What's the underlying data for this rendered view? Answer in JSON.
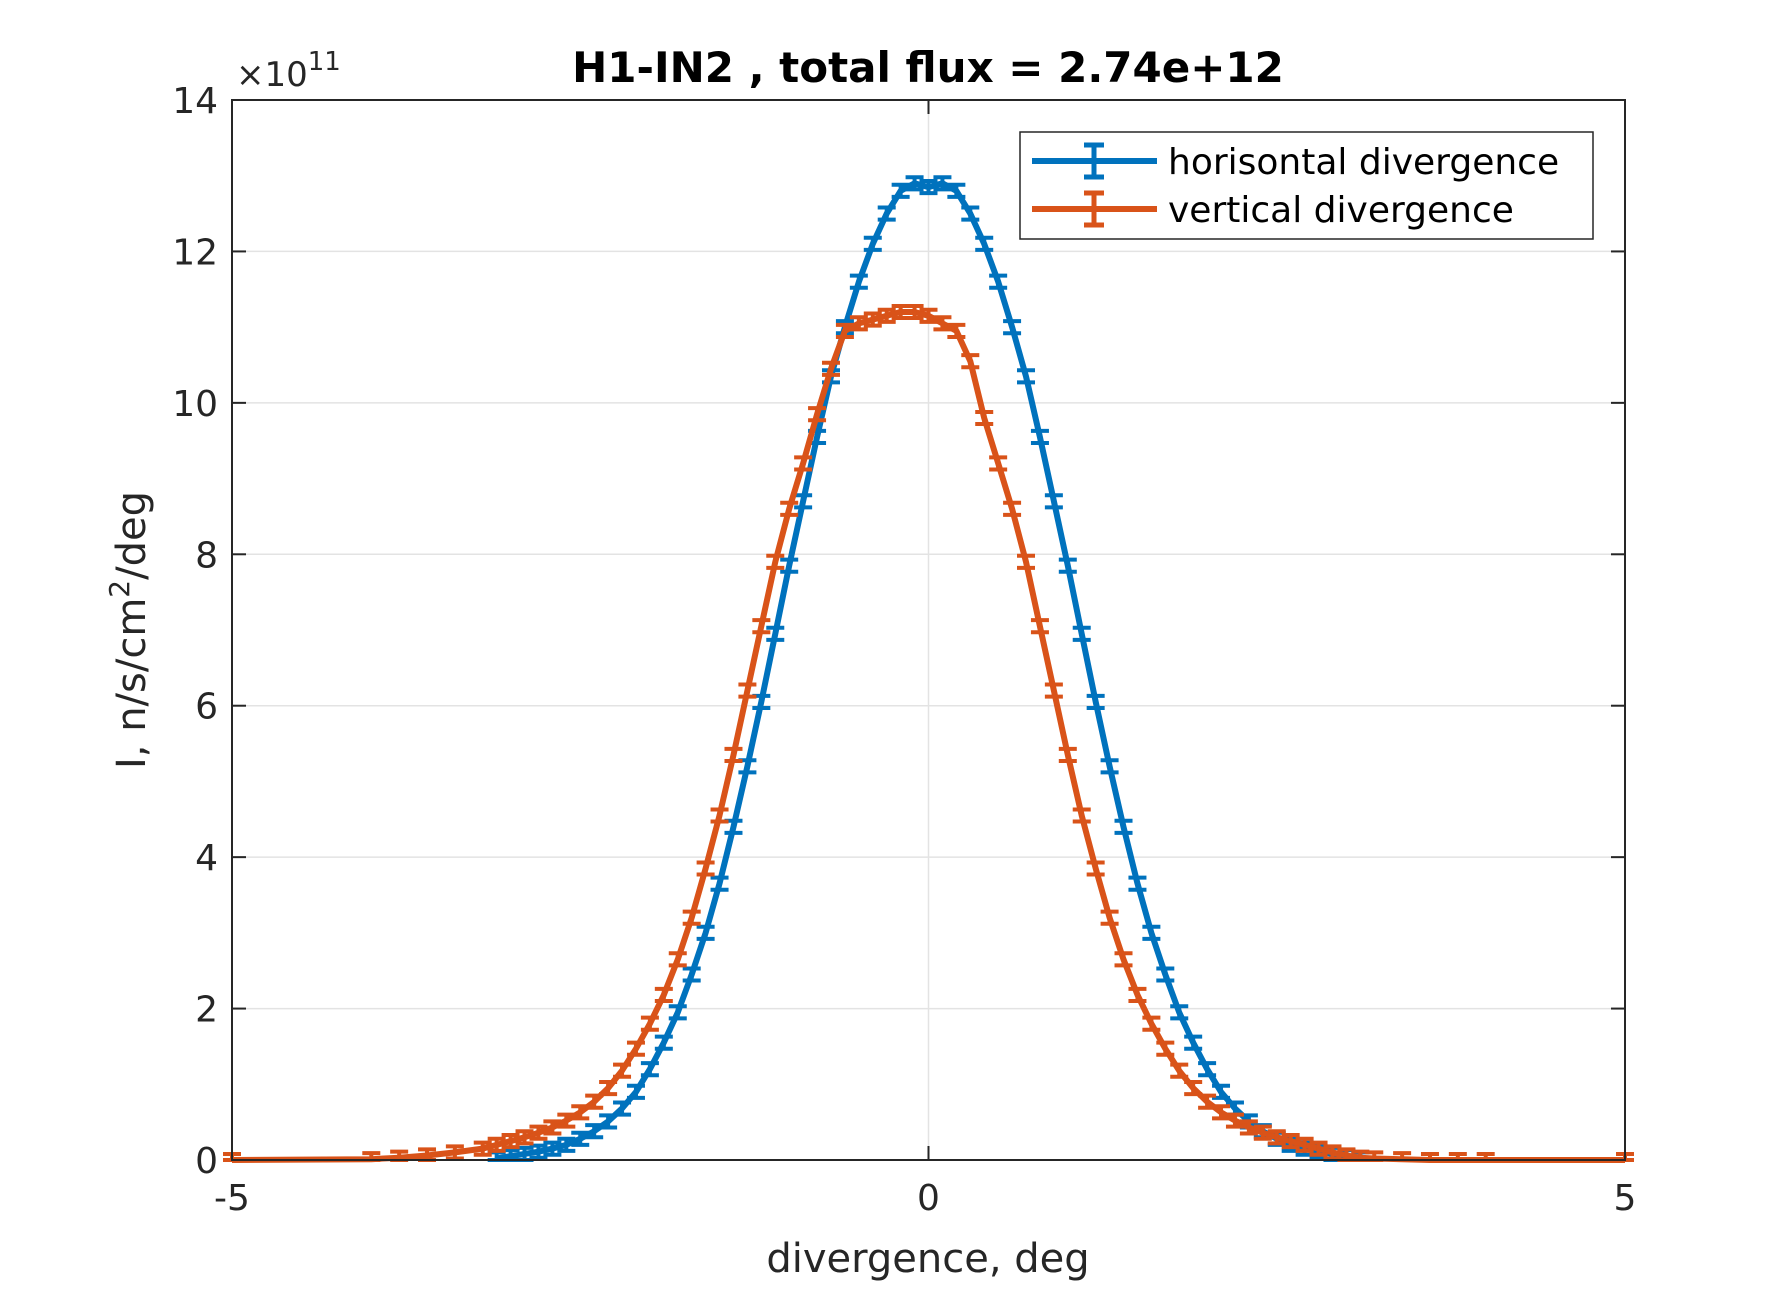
{
  "chart_data": {
    "type": "line",
    "title": "H1-IN2 , total flux =  2.74e+12",
    "xlabel": "divergence, deg",
    "ylabel_main": "I, n/s/cm",
    "ylabel_sup": "2",
    "ylabel_tail": "/deg",
    "y_exponent_prefix": "×10",
    "y_exponent_power": "11",
    "xlim": [
      -5,
      5
    ],
    "ylim": [
      0,
      14
    ],
    "x_ticks": [
      -5,
      0,
      5
    ],
    "y_ticks": [
      0,
      2,
      4,
      6,
      8,
      10,
      12,
      14
    ],
    "grid": true,
    "legend_position": "top-right",
    "series": [
      {
        "name": "horisontal divergence",
        "color": "#0072BD",
        "x": [
          -3.1,
          -3.0,
          -2.9,
          -2.8,
          -2.7,
          -2.6,
          -2.5,
          -2.4,
          -2.3,
          -2.2,
          -2.1,
          -2.0,
          -1.9,
          -1.8,
          -1.7,
          -1.6,
          -1.5,
          -1.4,
          -1.3,
          -1.2,
          -1.1,
          -1.0,
          -0.9,
          -0.8,
          -0.7,
          -0.6,
          -0.5,
          -0.4,
          -0.3,
          -0.2,
          -0.1,
          0.0,
          0.1,
          0.2,
          0.3,
          0.4,
          0.5,
          0.6,
          0.7,
          0.8,
          0.9,
          1.0,
          1.1,
          1.2,
          1.3,
          1.4,
          1.5,
          1.6,
          1.7,
          1.8,
          1.9,
          2.0,
          2.1,
          2.2,
          2.3,
          2.4,
          2.5,
          2.6,
          2.7,
          2.8,
          2.9,
          3.0,
          3.1
        ],
        "y": [
          0.02,
          0.05,
          0.08,
          0.11,
          0.15,
          0.2,
          0.28,
          0.38,
          0.51,
          0.68,
          0.9,
          1.2,
          1.55,
          1.95,
          2.45,
          3.0,
          3.65,
          4.4,
          5.2,
          6.05,
          6.95,
          7.85,
          8.7,
          9.55,
          10.35,
          11.0,
          11.6,
          12.1,
          12.5,
          12.8,
          12.9,
          12.85,
          12.9,
          12.8,
          12.5,
          12.1,
          11.6,
          11.0,
          10.35,
          9.55,
          8.7,
          7.85,
          6.95,
          6.05,
          5.2,
          4.4,
          3.65,
          3.0,
          2.45,
          1.95,
          1.55,
          1.2,
          0.9,
          0.68,
          0.51,
          0.38,
          0.28,
          0.2,
          0.15,
          0.11,
          0.08,
          0.05,
          0.02
        ]
      },
      {
        "name": "vertical divergence",
        "color": "#D95319",
        "x": [
          -5.0,
          -4.0,
          -3.8,
          -3.6,
          -3.4,
          -3.2,
          -3.1,
          -3.0,
          -2.9,
          -2.8,
          -2.7,
          -2.6,
          -2.5,
          -2.4,
          -2.3,
          -2.2,
          -2.1,
          -2.0,
          -1.9,
          -1.8,
          -1.7,
          -1.6,
          -1.5,
          -1.4,
          -1.3,
          -1.2,
          -1.1,
          -1.0,
          -0.9,
          -0.8,
          -0.7,
          -0.6,
          -0.5,
          -0.4,
          -0.3,
          -0.2,
          -0.1,
          0.0,
          0.1,
          0.2,
          0.3,
          0.4,
          0.5,
          0.6,
          0.7,
          0.8,
          0.9,
          1.0,
          1.1,
          1.2,
          1.3,
          1.4,
          1.5,
          1.6,
          1.7,
          1.8,
          1.9,
          2.0,
          2.1,
          2.2,
          2.3,
          2.4,
          2.5,
          2.6,
          2.7,
          2.8,
          2.9,
          3.0,
          3.1,
          3.2,
          3.4,
          3.6,
          3.8,
          4.0,
          5.0
        ],
        "y": [
          0.0,
          0.01,
          0.03,
          0.06,
          0.1,
          0.15,
          0.2,
          0.25,
          0.3,
          0.36,
          0.43,
          0.52,
          0.63,
          0.77,
          0.95,
          1.18,
          1.47,
          1.8,
          2.18,
          2.65,
          3.2,
          3.85,
          4.55,
          5.35,
          6.2,
          7.05,
          7.9,
          8.6,
          9.2,
          9.85,
          10.45,
          10.95,
          11.05,
          11.1,
          11.15,
          11.2,
          11.2,
          11.15,
          11.05,
          10.95,
          10.55,
          9.8,
          9.2,
          8.6,
          7.9,
          7.05,
          6.2,
          5.35,
          4.55,
          3.85,
          3.2,
          2.65,
          2.18,
          1.8,
          1.47,
          1.18,
          0.95,
          0.77,
          0.63,
          0.52,
          0.43,
          0.36,
          0.3,
          0.25,
          0.2,
          0.15,
          0.1,
          0.06,
          0.03,
          0.02,
          0.01,
          0.0,
          0.0,
          0.0,
          0.0
        ]
      }
    ]
  }
}
